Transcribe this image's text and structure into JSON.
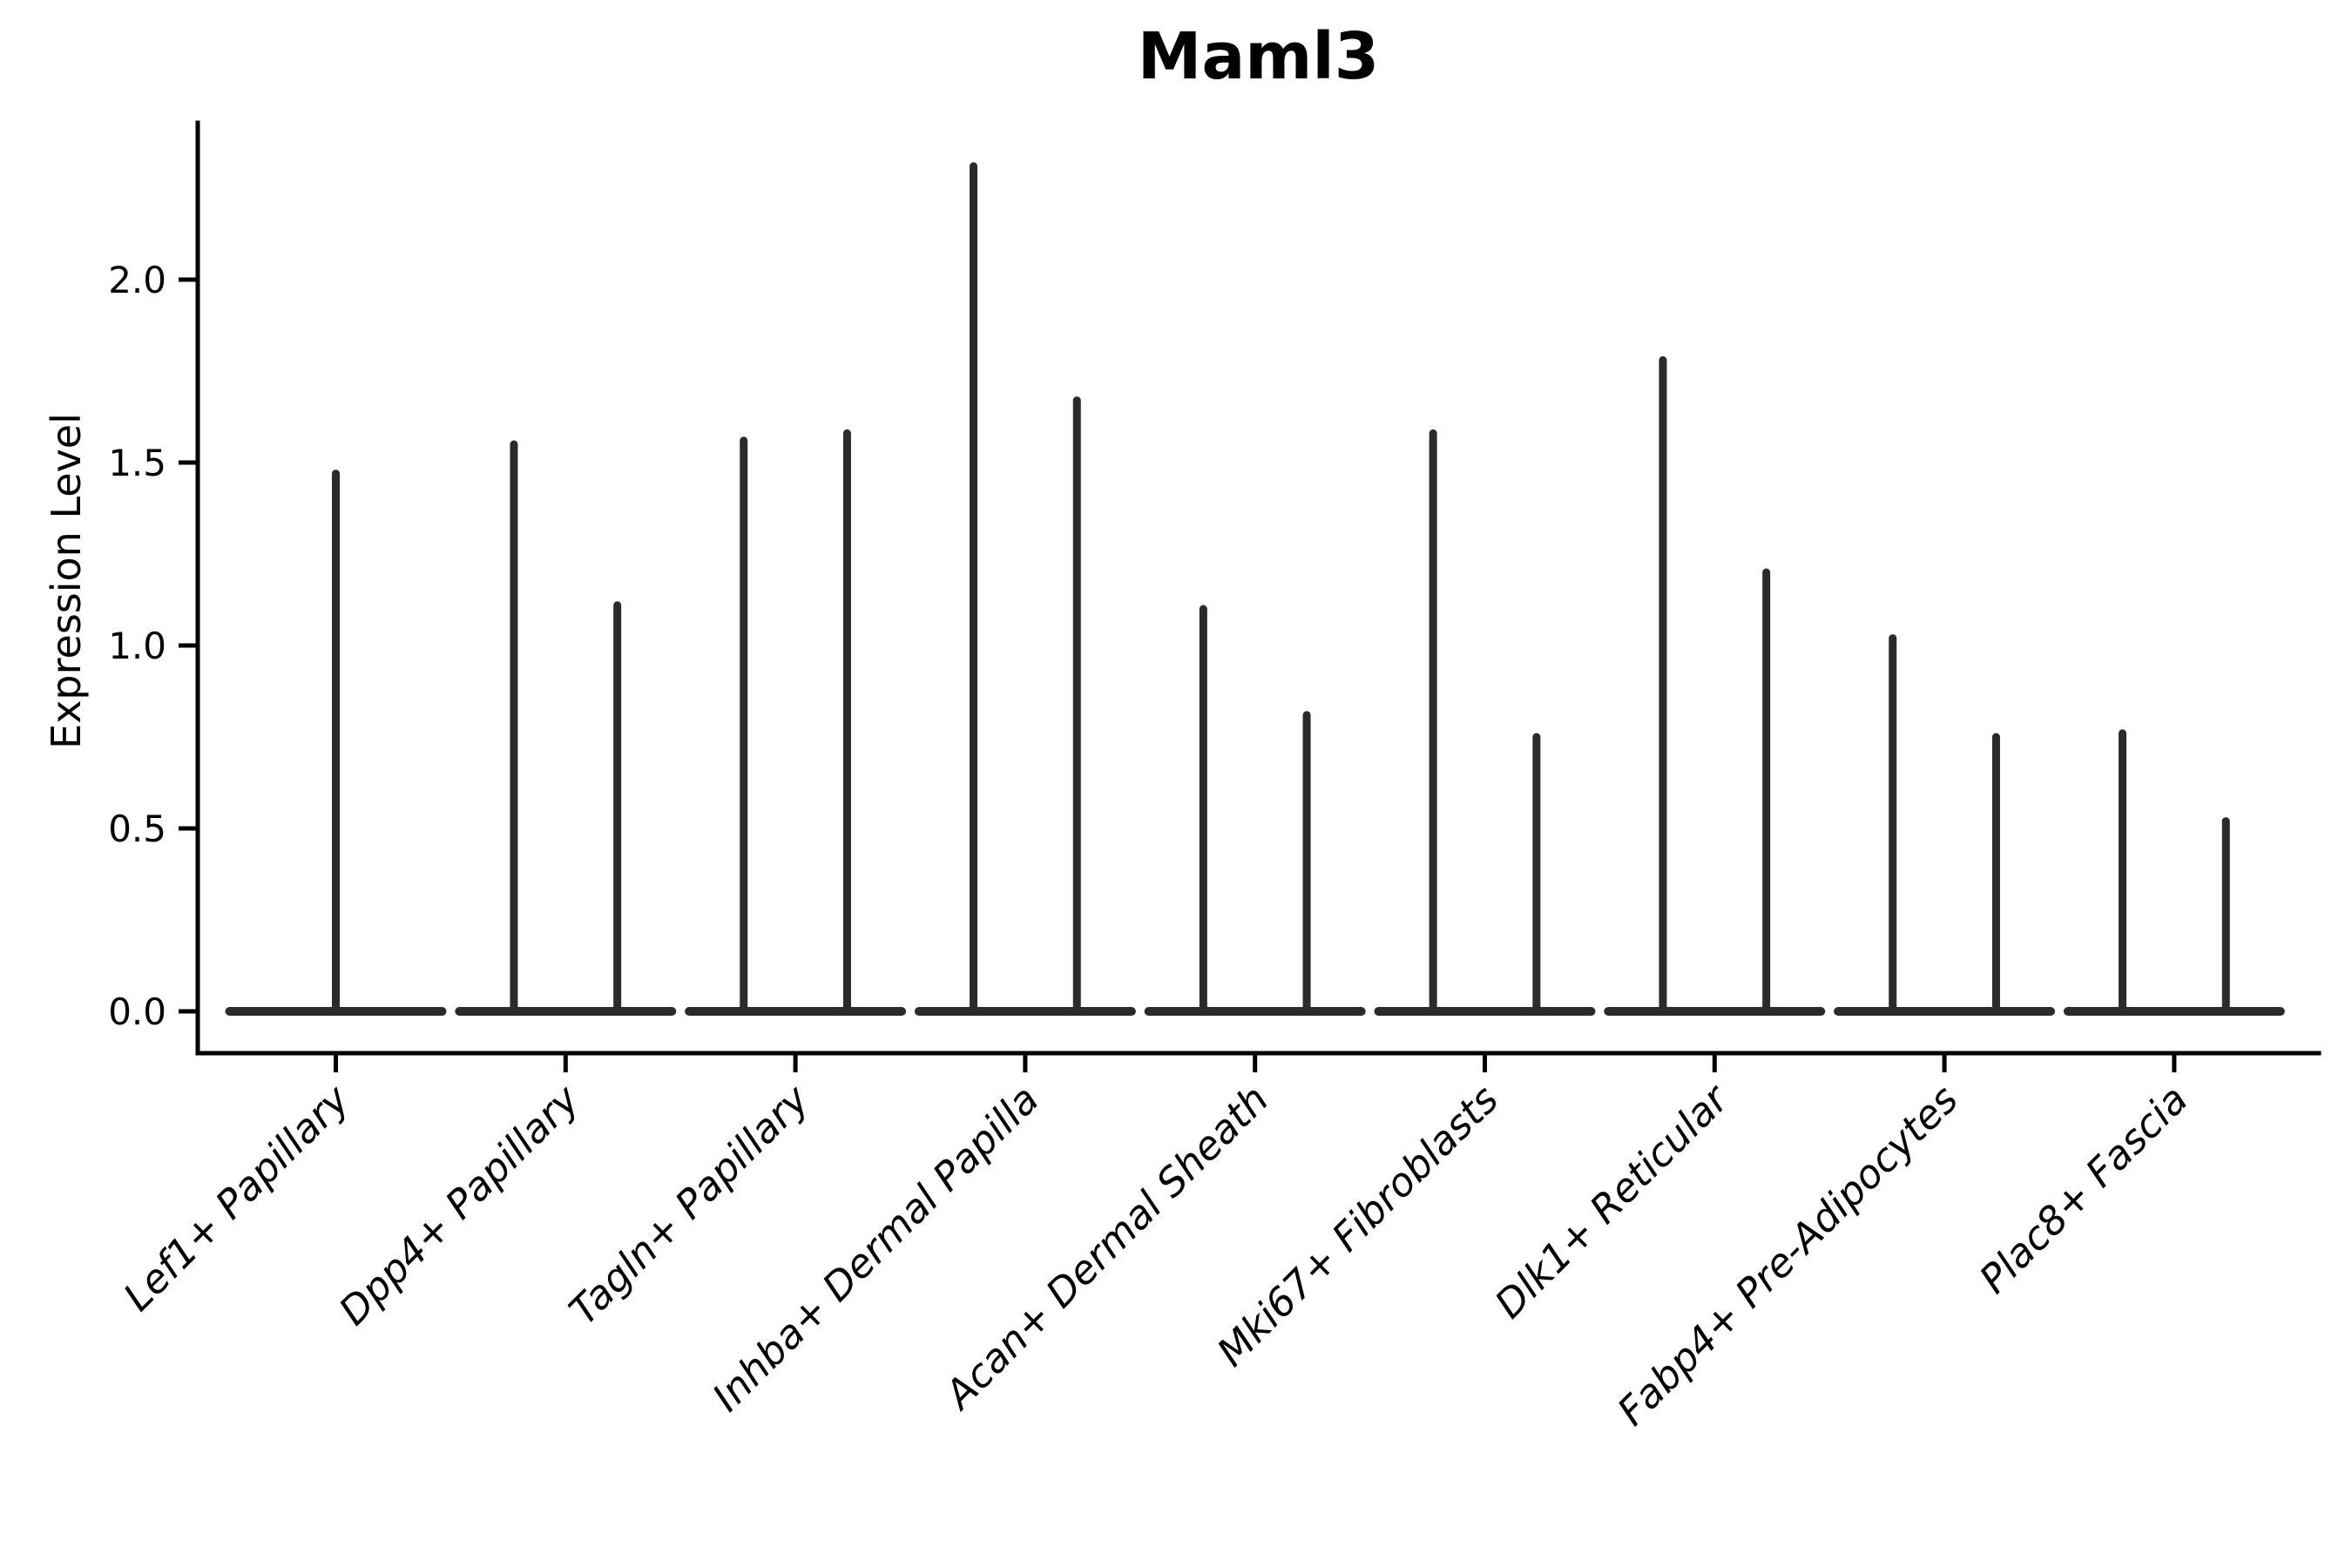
{
  "figure": {
    "background": "#ffffff"
  },
  "chart_data": {
    "type": "violin",
    "title": "Maml3",
    "ylabel": "Expression Level",
    "xlabel": "",
    "ylim": [
      -0.11,
      2.43
    ],
    "grid": false,
    "legend": null,
    "colors": {
      "violin": "#2b2b2b",
      "axis": "#000000",
      "text": "#000000"
    },
    "yticks": [
      {
        "value": 0.0,
        "label": "0.0"
      },
      {
        "value": 0.5,
        "label": "0.5"
      },
      {
        "value": 1.0,
        "label": "1.0"
      },
      {
        "value": 1.5,
        "label": "1.5"
      },
      {
        "value": 2.0,
        "label": "2.0"
      }
    ],
    "categories": [
      "Lef1+ Papillary",
      "Dpp4+ Papillary",
      "Tagln+ Papillary",
      "Inhba+ Dermal Papilla",
      "Acan+ Dermal Sheath",
      "Mki67+ Fibroblasts",
      "Dlk1+ Reticular",
      "Fabp4+ Pre-Adipocytes",
      "Plac8+ Fascia"
    ],
    "groups": [
      {
        "label": "Lef1+ Papillary",
        "violins": [
          {
            "offset": 0.0,
            "peak": 1.47
          }
        ]
      },
      {
        "label": "Dpp4+ Papillary",
        "violins": [
          {
            "offset": -0.225,
            "peak": 1.55
          },
          {
            "offset": 0.225,
            "peak": 1.11
          }
        ]
      },
      {
        "label": "Tagln+ Papillary",
        "violins": [
          {
            "offset": -0.225,
            "peak": 1.56
          },
          {
            "offset": 0.225,
            "peak": 1.58
          }
        ]
      },
      {
        "label": "Inhba+ Dermal Papilla",
        "violins": [
          {
            "offset": -0.225,
            "peak": 2.31
          },
          {
            "offset": 0.225,
            "peak": 1.67
          }
        ]
      },
      {
        "label": "Acan+ Dermal Sheath",
        "violins": [
          {
            "offset": -0.225,
            "peak": 1.1
          },
          {
            "offset": 0.225,
            "peak": 0.81
          }
        ]
      },
      {
        "label": "Mki67+ Fibroblasts",
        "violins": [
          {
            "offset": -0.225,
            "peak": 1.58
          },
          {
            "offset": 0.225,
            "peak": 0.75
          }
        ]
      },
      {
        "label": "Dlk1+ Reticular",
        "violins": [
          {
            "offset": -0.225,
            "peak": 1.78
          },
          {
            "offset": 0.225,
            "peak": 1.2
          }
        ]
      },
      {
        "label": "Fabp4+ Pre-Adipocytes",
        "violins": [
          {
            "offset": -0.225,
            "peak": 1.02
          },
          {
            "offset": 0.225,
            "peak": 0.75
          }
        ]
      },
      {
        "label": "Plac8+ Fascia",
        "violins": [
          {
            "offset": -0.225,
            "peak": 0.76
          },
          {
            "offset": 0.225,
            "peak": 0.52
          }
        ]
      }
    ]
  }
}
